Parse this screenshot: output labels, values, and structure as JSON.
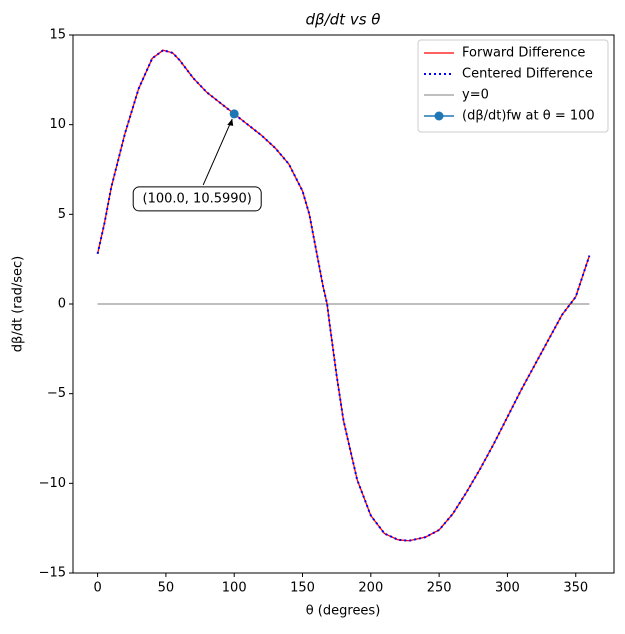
{
  "chart_data": {
    "type": "line",
    "title": "dβ/dt vs θ",
    "xlabel": "θ (degrees)",
    "ylabel": "dβ/dt (rad/sec)",
    "xlim": [
      -18,
      378
    ],
    "ylim": [
      -15,
      15
    ],
    "xticks": [
      0,
      50,
      100,
      150,
      200,
      250,
      300,
      350
    ],
    "yticks": [
      {
        "value": -15,
        "label": "−15"
      },
      {
        "value": -10,
        "label": "−10"
      },
      {
        "value": -5,
        "label": "−5"
      },
      0,
      5,
      10,
      15
    ],
    "legend": "upper right",
    "series": [
      {
        "name": "Forward Difference",
        "color": "#ff0000",
        "style": "solid",
        "x": [
          0,
          5,
          10,
          20,
          30,
          40,
          48,
          55,
          60,
          70,
          80,
          90,
          100,
          110,
          120,
          130,
          140,
          150,
          155,
          160,
          165,
          168,
          170,
          175,
          180,
          190,
          200,
          210,
          220,
          228,
          240,
          250,
          260,
          270,
          280,
          290,
          300,
          310,
          320,
          330,
          340,
          350,
          360
        ],
        "values": [
          2.8,
          4.5,
          6.5,
          9.5,
          12.0,
          13.7,
          14.15,
          14.0,
          13.6,
          12.6,
          11.8,
          11.2,
          10.599,
          10.0,
          9.4,
          8.7,
          7.8,
          6.3,
          5.0,
          3.0,
          1.0,
          0.0,
          -1.2,
          -4.0,
          -6.5,
          -9.8,
          -11.8,
          -12.8,
          -13.15,
          -13.2,
          -13.0,
          -12.6,
          -11.7,
          -10.5,
          -9.2,
          -7.8,
          -6.3,
          -4.8,
          -3.4,
          -2.0,
          -0.6,
          0.4,
          2.7
        ]
      },
      {
        "name": "Centered Difference",
        "color": "#0000ff",
        "style": "dotted",
        "x": [
          0,
          5,
          10,
          20,
          30,
          40,
          48,
          55,
          60,
          70,
          80,
          90,
          100,
          110,
          120,
          130,
          140,
          150,
          155,
          160,
          165,
          168,
          170,
          175,
          180,
          190,
          200,
          210,
          220,
          228,
          240,
          250,
          260,
          270,
          280,
          290,
          300,
          310,
          320,
          330,
          340,
          350,
          360
        ],
        "values": [
          2.8,
          4.5,
          6.5,
          9.5,
          12.0,
          13.7,
          14.15,
          14.0,
          13.6,
          12.6,
          11.8,
          11.2,
          10.599,
          10.0,
          9.4,
          8.7,
          7.8,
          6.3,
          5.0,
          3.0,
          1.0,
          0.0,
          -1.2,
          -4.0,
          -6.5,
          -9.8,
          -11.8,
          -12.8,
          -13.15,
          -13.2,
          -13.0,
          -12.6,
          -11.7,
          -10.5,
          -9.2,
          -7.8,
          -6.3,
          -4.8,
          -3.4,
          -2.0,
          -0.6,
          0.4,
          2.7
        ]
      },
      {
        "name": "y=0",
        "color": "#000000",
        "style": "thin",
        "x": [
          0,
          360
        ],
        "values": [
          0,
          0
        ]
      },
      {
        "name": "(dβ/dt)fw at θ = 100",
        "color": "#1f77b4",
        "style": "marker",
        "x": [
          100
        ],
        "values": [
          10.599
        ]
      }
    ],
    "annotation": "(100.0, 10.5990)"
  }
}
